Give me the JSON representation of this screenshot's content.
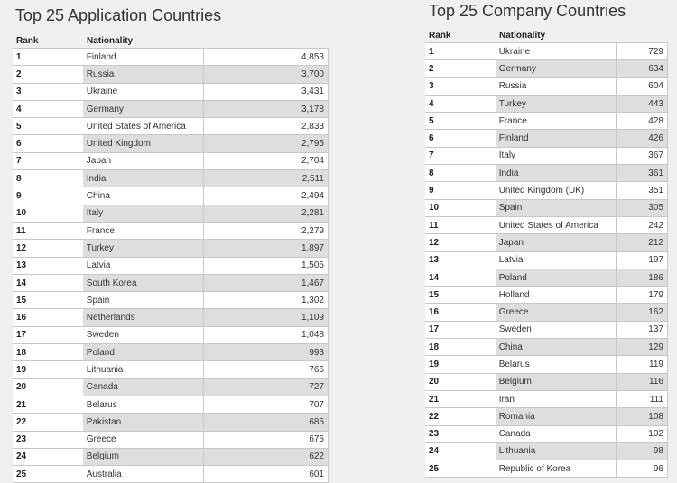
{
  "applications": {
    "title": "Top 25 Application Countries",
    "headers": {
      "rank": "Rank",
      "nationality": "Nationality",
      "value": ""
    },
    "rows": [
      {
        "rank": "1",
        "nationality": "Finland",
        "value": "4,853"
      },
      {
        "rank": "2",
        "nationality": "Russia",
        "value": "3,700"
      },
      {
        "rank": "3",
        "nationality": "Ukraine",
        "value": "3,431"
      },
      {
        "rank": "4",
        "nationality": "Germany",
        "value": "3,178"
      },
      {
        "rank": "5",
        "nationality": "United States of America",
        "value": "2,833"
      },
      {
        "rank": "6",
        "nationality": "United Kingdom",
        "value": "2,795"
      },
      {
        "rank": "7",
        "nationality": "Japan",
        "value": "2,704"
      },
      {
        "rank": "8",
        "nationality": "India",
        "value": "2,511"
      },
      {
        "rank": "9",
        "nationality": "China",
        "value": "2,494"
      },
      {
        "rank": "10",
        "nationality": "Italy",
        "value": "2,281"
      },
      {
        "rank": "11",
        "nationality": "France",
        "value": "2,279"
      },
      {
        "rank": "12",
        "nationality": "Turkey",
        "value": "1,897"
      },
      {
        "rank": "13",
        "nationality": "Latvia",
        "value": "1,505"
      },
      {
        "rank": "14",
        "nationality": "South Korea",
        "value": "1,467"
      },
      {
        "rank": "15",
        "nationality": "Spain",
        "value": "1,302"
      },
      {
        "rank": "16",
        "nationality": "Netherlands",
        "value": "1,109"
      },
      {
        "rank": "17",
        "nationality": "Sweden",
        "value": "1,048"
      },
      {
        "rank": "18",
        "nationality": "Poland",
        "value": "993"
      },
      {
        "rank": "19",
        "nationality": "Lithuania",
        "value": "766"
      },
      {
        "rank": "20",
        "nationality": "Canada",
        "value": "727"
      },
      {
        "rank": "21",
        "nationality": "Belarus",
        "value": "707"
      },
      {
        "rank": "22",
        "nationality": "Pakistan",
        "value": "685"
      },
      {
        "rank": "23",
        "nationality": "Greece",
        "value": "675"
      },
      {
        "rank": "24",
        "nationality": "Belgium",
        "value": "622"
      },
      {
        "rank": "25",
        "nationality": "Australia",
        "value": "601"
      }
    ]
  },
  "companies": {
    "title": "Top 25 Company Countries",
    "headers": {
      "rank": "Rank",
      "nationality": "Nationality",
      "value": ""
    },
    "rows": [
      {
        "rank": "1",
        "nationality": "Ukraine",
        "value": "729"
      },
      {
        "rank": "2",
        "nationality": "Germany",
        "value": "634"
      },
      {
        "rank": "3",
        "nationality": "Russia",
        "value": "604"
      },
      {
        "rank": "4",
        "nationality": "Turkey",
        "value": "443"
      },
      {
        "rank": "5",
        "nationality": "France",
        "value": "428"
      },
      {
        "rank": "6",
        "nationality": "Finland",
        "value": "426"
      },
      {
        "rank": "7",
        "nationality": "Italy",
        "value": "367"
      },
      {
        "rank": "8",
        "nationality": "India",
        "value": "361"
      },
      {
        "rank": "9",
        "nationality": "United Kingdom (UK)",
        "value": "351"
      },
      {
        "rank": "10",
        "nationality": "Spain",
        "value": "305"
      },
      {
        "rank": "11",
        "nationality": "United States of America",
        "value": "242"
      },
      {
        "rank": "12",
        "nationality": "Japan",
        "value": "212"
      },
      {
        "rank": "13",
        "nationality": "Latvia",
        "value": "197"
      },
      {
        "rank": "14",
        "nationality": "Poland",
        "value": "186"
      },
      {
        "rank": "15",
        "nationality": "Holland",
        "value": "179"
      },
      {
        "rank": "16",
        "nationality": "Greece",
        "value": "162"
      },
      {
        "rank": "17",
        "nationality": "Sweden",
        "value": "137"
      },
      {
        "rank": "18",
        "nationality": "China",
        "value": "129"
      },
      {
        "rank": "19",
        "nationality": "Belarus",
        "value": "119"
      },
      {
        "rank": "20",
        "nationality": "Belgium",
        "value": "116"
      },
      {
        "rank": "21",
        "nationality": "Iran",
        "value": "111"
      },
      {
        "rank": "22",
        "nationality": "Romania",
        "value": "108"
      },
      {
        "rank": "23",
        "nationality": "Canada",
        "value": "102"
      },
      {
        "rank": "24",
        "nationality": "Lithuania",
        "value": "98"
      },
      {
        "rank": "25",
        "nationality": "Republic of Korea",
        "value": "96"
      }
    ]
  }
}
